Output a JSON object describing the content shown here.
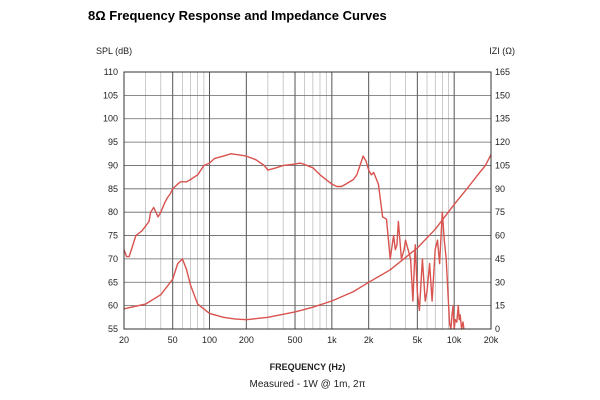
{
  "chart_data": {
    "type": "line",
    "title": "8Ω Frequency Response and Impedance Curves",
    "ylabel_left": "SPL (dB)",
    "ylabel_right": "IZI (Ω)",
    "xlabel": "FREQUENCY (Hz)",
    "note": "Measured - 1W @ 1m, 2π",
    "x_scale": "log",
    "xlim": [
      20,
      20000
    ],
    "ylim_left": [
      55,
      110
    ],
    "ylim_right": [
      0,
      165
    ],
    "grid": true,
    "line_color": "#d9534f",
    "x_ticks": [
      20,
      50,
      100,
      200,
      500,
      1000,
      2000,
      5000,
      10000,
      20000
    ],
    "x_tick_labels": [
      "20",
      "50",
      "100",
      "200",
      "500",
      "1k",
      "2k",
      "5k",
      "10k",
      "20k"
    ],
    "y_ticks_left": [
      "110",
      "105",
      "100",
      "95",
      "90",
      "85",
      "80",
      "75",
      "70",
      "65",
      "60",
      "55"
    ],
    "y_ticks_right": [
      "165",
      "150",
      "135",
      "120",
      "105",
      "90",
      "75",
      "60",
      "45",
      "30",
      "15",
      "0"
    ],
    "series": [
      {
        "axis": "left",
        "x": [
          20,
          21,
          22,
          23,
          25,
          28,
          30,
          32,
          33,
          35,
          38,
          40,
          43,
          45,
          48,
          50,
          55,
          58,
          65,
          70,
          80,
          90,
          100,
          110,
          130,
          150,
          170,
          200,
          240,
          280,
          300,
          350,
          400,
          500,
          550,
          600,
          650,
          700,
          800,
          1000,
          1100,
          1200,
          1300,
          1500,
          1600,
          1700,
          1800,
          1900,
          2000,
          2100,
          2200,
          2400,
          2600,
          2800,
          3000,
          3200,
          3300,
          3400,
          3500,
          3700,
          3900,
          4000,
          4200,
          4400,
          4600,
          4800,
          5000,
          5200,
          5500,
          5800,
          6000,
          6300,
          6600,
          7000,
          7300,
          7600,
          8000,
          8300,
          8600,
          9000,
          9200,
          9400,
          9600,
          9800,
          10000,
          10200,
          10500,
          10800,
          11000,
          11200,
          11500,
          11800,
          12000
        ],
        "y": [
          72,
          70.5,
          70.5,
          72,
          75,
          76,
          77,
          78,
          80,
          81,
          79,
          80,
          82,
          83,
          84,
          85,
          86,
          86.5,
          86.5,
          87,
          88,
          90,
          90.5,
          91.5,
          92,
          92.5,
          92.3,
          92,
          91.2,
          90,
          89,
          89.5,
          90,
          90.3,
          90.5,
          90.2,
          89.8,
          89.5,
          88,
          86,
          85.5,
          85.5,
          86,
          87,
          88,
          90,
          92,
          91,
          89,
          88,
          88.5,
          86,
          79,
          78.5,
          70,
          75,
          72,
          73,
          78,
          70,
          72,
          74,
          72,
          70,
          61,
          73,
          63,
          59,
          70,
          61,
          63,
          69,
          61,
          72,
          74,
          69,
          80,
          74,
          70,
          60,
          56,
          55,
          58,
          60,
          55,
          57,
          56.5,
          60,
          57,
          58,
          55,
          56.5,
          55
        ]
      },
      {
        "axis": "right",
        "x": [
          20,
          30,
          40,
          50,
          55,
          60,
          65,
          70,
          80,
          100,
          130,
          160,
          200,
          300,
          500,
          700,
          1000,
          1500,
          2000,
          3000,
          5000,
          7000,
          10000,
          13000,
          16000,
          18000,
          20000
        ],
        "y": [
          13,
          16,
          22,
          32,
          42,
          45,
          38,
          28,
          16,
          10,
          7.5,
          6.5,
          6,
          7.5,
          11,
          14,
          18,
          24,
          30,
          38,
          52,
          64,
          80,
          91,
          100,
          105,
          112
        ]
      }
    ]
  }
}
